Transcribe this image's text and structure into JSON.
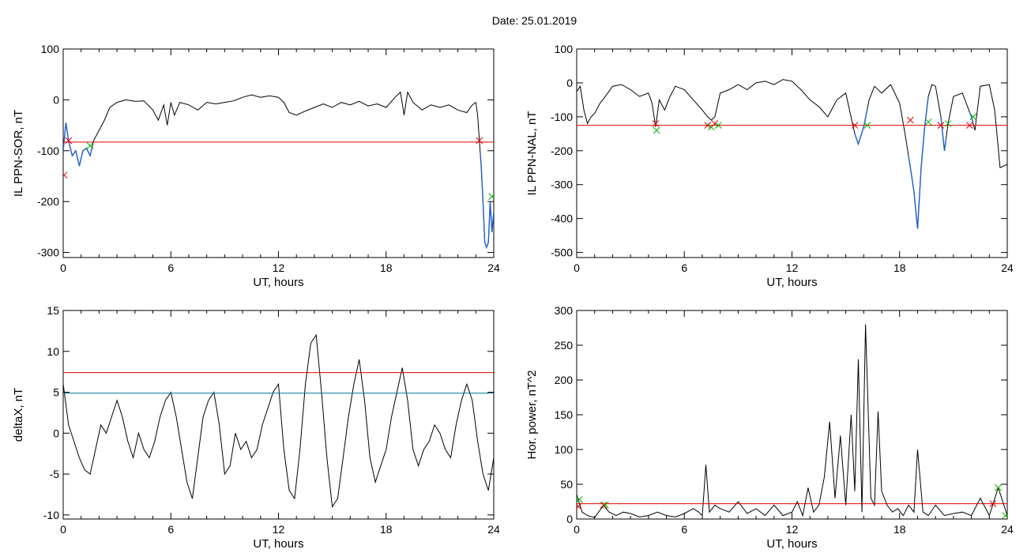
{
  "header": {
    "date_label": "Date:  25.01.2019"
  },
  "colors": {
    "data": "#000000",
    "threshold_red": "#e00000",
    "threshold_blue": "#007f9f",
    "segment_blue": "#1f5fd0",
    "marker_red": "#e00000",
    "marker_green": "#00b000"
  },
  "chart_data": [
    {
      "type": "line",
      "ylabel": "IL PPN-SOR, nT",
      "xlabel": "UT, hours",
      "xlim": [
        0,
        24
      ],
      "ylim": [
        -310,
        100
      ],
      "xticks": [
        0,
        6,
        12,
        18,
        24
      ],
      "yticks": [
        100,
        0,
        -100,
        -200,
        -300
      ],
      "series": [
        {
          "x": [
            0,
            0.15,
            0.3,
            0.5,
            0.7,
            0.9,
            1.1,
            1.3,
            1.5,
            1.7,
            2.0,
            2.3,
            2.6,
            3.0,
            3.5,
            4.0,
            4.5,
            5.0,
            5.3,
            5.6,
            5.8,
            6.0,
            6.2,
            6.5,
            7.0,
            7.5,
            8.0,
            8.5,
            9.0,
            9.5,
            10.0,
            10.5,
            11.0,
            11.5,
            12.0,
            12.3,
            12.6,
            13.0,
            13.5,
            14.0,
            14.5,
            15.0,
            15.5,
            16.0,
            16.5,
            17.0,
            17.5,
            18.0,
            18.5,
            18.8,
            19.0,
            19.2,
            19.5,
            20.0,
            20.5,
            21.0,
            21.5,
            22.0,
            22.5,
            22.8,
            23.0,
            23.1,
            23.2,
            23.3,
            23.4,
            23.5,
            23.6,
            23.7,
            23.8,
            23.9,
            24.0
          ],
          "y": [
            -100,
            -45,
            -80,
            -110,
            -100,
            -130,
            -100,
            -95,
            -110,
            -80,
            -60,
            -40,
            -15,
            -5,
            0,
            -3,
            -2,
            -20,
            -40,
            -10,
            -50,
            -5,
            -30,
            -5,
            -10,
            -20,
            -5,
            -8,
            -5,
            -2,
            5,
            10,
            5,
            8,
            5,
            -5,
            -25,
            -30,
            -22,
            -15,
            -8,
            -15,
            -5,
            -10,
            -3,
            -12,
            -8,
            -15,
            5,
            15,
            -30,
            15,
            -5,
            -20,
            -10,
            -15,
            -10,
            -20,
            -25,
            -10,
            -5,
            -30,
            -80,
            -130,
            -200,
            -280,
            -290,
            -280,
            -200,
            -260,
            -220
          ]
        }
      ],
      "threshold_lines": [
        {
          "y": -83,
          "color": "red"
        }
      ],
      "segments": [
        {
          "x0": 0,
          "x1": 1.6,
          "color": "blue"
        },
        {
          "x0": 23.25,
          "x1": 24,
          "color": "blue"
        }
      ],
      "markers": [
        {
          "x": 0.05,
          "y": -148,
          "color": "red"
        },
        {
          "x": 0.3,
          "y": -80,
          "color": "red"
        },
        {
          "x": 1.5,
          "y": -90,
          "color": "green"
        },
        {
          "x": 23.2,
          "y": -80,
          "color": "red"
        },
        {
          "x": 23.9,
          "y": -190,
          "color": "green"
        }
      ]
    },
    {
      "type": "line",
      "ylabel": "IL PPN-NAL, nT",
      "xlabel": "UT, hours",
      "xlim": [
        0,
        24
      ],
      "ylim": [
        -515,
        100
      ],
      "xticks": [
        0,
        6,
        12,
        18,
        24
      ],
      "yticks": [
        100,
        0,
        -100,
        -200,
        -300,
        -400,
        -500
      ],
      "series": [
        {
          "x": [
            0,
            0.2,
            0.4,
            0.6,
            0.8,
            1.0,
            1.3,
            1.6,
            2.0,
            2.5,
            3.0,
            3.5,
            4.0,
            4.2,
            4.4,
            4.6,
            4.9,
            5.2,
            5.5,
            6.0,
            6.5,
            7.0,
            7.3,
            7.5,
            7.7,
            8.0,
            8.5,
            9.0,
            9.5,
            10.0,
            10.5,
            11.0,
            11.5,
            12.0,
            12.5,
            13.0,
            13.5,
            14.0,
            14.5,
            15.0,
            15.5,
            15.7,
            16.0,
            16.3,
            16.6,
            17.0,
            17.5,
            18.0,
            18.3,
            18.6,
            18.8,
            19.0,
            19.2,
            19.4,
            19.6,
            19.8,
            20.0,
            20.3,
            20.5,
            20.7,
            21.0,
            21.5,
            22.0,
            22.2,
            22.5,
            23.0,
            23.3,
            23.6,
            24.0
          ],
          "y": [
            -25,
            -10,
            -80,
            -120,
            -100,
            -90,
            -60,
            -40,
            -10,
            -5,
            -20,
            -40,
            -30,
            -60,
            -130,
            -50,
            -80,
            -40,
            -10,
            -20,
            -50,
            -80,
            -100,
            -110,
            -100,
            -30,
            -20,
            -5,
            -20,
            0,
            5,
            -5,
            10,
            5,
            -20,
            -50,
            -70,
            -100,
            -50,
            -30,
            -150,
            -180,
            -130,
            -50,
            -10,
            -30,
            -5,
            -60,
            -150,
            -250,
            -320,
            -430,
            -250,
            -130,
            -40,
            -5,
            -10,
            -100,
            -200,
            -120,
            -40,
            -30,
            -100,
            -140,
            -10,
            -5,
            -80,
            -250,
            -240
          ]
        }
      ],
      "threshold_lines": [
        {
          "y": -125,
          "color": "red"
        }
      ],
      "segments": [
        {
          "x0": 15.5,
          "x1": 16.2,
          "color": "blue"
        },
        {
          "x0": 18.5,
          "x1": 19.6,
          "color": "blue"
        },
        {
          "x0": 20.3,
          "x1": 20.6,
          "color": "blue"
        },
        {
          "x0": 21.9,
          "x1": 22.1,
          "color": "blue"
        }
      ],
      "markers": [
        {
          "x": 4.4,
          "y": -120,
          "color": "red"
        },
        {
          "x": 4.45,
          "y": -140,
          "color": "green"
        },
        {
          "x": 7.3,
          "y": -125,
          "color": "red"
        },
        {
          "x": 7.5,
          "y": -130,
          "color": "green"
        },
        {
          "x": 7.7,
          "y": -120,
          "color": "red"
        },
        {
          "x": 7.9,
          "y": -125,
          "color": "green"
        },
        {
          "x": 15.5,
          "y": -125,
          "color": "red"
        },
        {
          "x": 16.2,
          "y": -125,
          "color": "green"
        },
        {
          "x": 18.6,
          "y": -110,
          "color": "red"
        },
        {
          "x": 19.6,
          "y": -115,
          "color": "green"
        },
        {
          "x": 20.3,
          "y": -125,
          "color": "red"
        },
        {
          "x": 20.7,
          "y": -120,
          "color": "green"
        },
        {
          "x": 21.9,
          "y": -125,
          "color": "red"
        },
        {
          "x": 22.1,
          "y": -100,
          "color": "green"
        }
      ]
    },
    {
      "type": "line",
      "ylabel": "deltaX, nT",
      "xlabel": "UT, hours",
      "xlim": [
        0,
        24
      ],
      "ylim": [
        -10.5,
        15
      ],
      "xticks": [
        0,
        6,
        12,
        18,
        24
      ],
      "yticks": [
        15,
        10,
        5,
        0,
        -5,
        -10
      ],
      "series": [
        {
          "x": [
            0,
            0.3,
            0.6,
            0.9,
            1.2,
            1.5,
            1.8,
            2.1,
            2.4,
            2.7,
            3.0,
            3.3,
            3.6,
            3.9,
            4.2,
            4.5,
            4.8,
            5.1,
            5.4,
            5.7,
            6.0,
            6.3,
            6.6,
            6.9,
            7.2,
            7.5,
            7.8,
            8.1,
            8.4,
            8.7,
            9.0,
            9.3,
            9.6,
            9.9,
            10.2,
            10.5,
            10.8,
            11.1,
            11.4,
            11.7,
            12.0,
            12.3,
            12.6,
            12.9,
            13.2,
            13.5,
            13.8,
            14.1,
            14.4,
            14.7,
            15.0,
            15.3,
            15.6,
            15.9,
            16.2,
            16.5,
            16.8,
            17.1,
            17.4,
            17.7,
            18.0,
            18.3,
            18.6,
            18.9,
            19.2,
            19.5,
            19.8,
            20.1,
            20.4,
            20.7,
            21.0,
            21.3,
            21.6,
            21.9,
            22.2,
            22.5,
            22.8,
            23.1,
            23.4,
            23.7,
            24.0
          ],
          "y": [
            6,
            1,
            -1,
            -3,
            -4.5,
            -5,
            -2,
            1,
            0,
            2,
            4,
            2,
            -1,
            -3,
            0,
            -2,
            -3,
            -1,
            2,
            4,
            5,
            2,
            -2,
            -6,
            -8,
            -3,
            2,
            4,
            5,
            1,
            -5,
            -4,
            0,
            -2,
            -1,
            -3,
            -2,
            1,
            3,
            5,
            6,
            -2,
            -7,
            -8,
            -2,
            6,
            11,
            12,
            5,
            -3,
            -9,
            -8,
            -3,
            2,
            6,
            9,
            4,
            -3,
            -6,
            -4,
            -2,
            2,
            5,
            8,
            4,
            -2,
            -4,
            -2,
            -1,
            1,
            0,
            -2,
            -3,
            1,
            4,
            6,
            4,
            -1,
            -5,
            -7,
            -3
          ]
        }
      ],
      "threshold_lines": [
        {
          "y": 7.4,
          "color": "red"
        },
        {
          "y": 4.9,
          "color": "blue"
        }
      ],
      "segments": [],
      "markers": []
    },
    {
      "type": "line",
      "ylabel": "Hor. power, nT^2",
      "xlabel": "UT, hours",
      "xlim": [
        0,
        24
      ],
      "ylim": [
        0,
        300
      ],
      "xticks": [
        0,
        6,
        12,
        18,
        24
      ],
      "yticks": [
        300,
        250,
        200,
        150,
        100,
        50,
        0
      ],
      "series": [
        {
          "x": [
            0,
            0.3,
            0.6,
            1.0,
            1.5,
            1.8,
            2.2,
            2.6,
            3.0,
            3.5,
            4.0,
            4.5,
            5.0,
            5.5,
            6.0,
            6.5,
            6.8,
            7.0,
            7.2,
            7.4,
            7.7,
            8.0,
            8.5,
            9.0,
            9.5,
            10.0,
            10.5,
            11.0,
            11.5,
            12.0,
            12.3,
            12.6,
            12.9,
            13.2,
            13.5,
            13.8,
            14.1,
            14.4,
            14.7,
            15.0,
            15.3,
            15.5,
            15.7,
            15.9,
            16.1,
            16.4,
            16.6,
            16.8,
            17.0,
            17.3,
            17.6,
            17.9,
            18.2,
            18.5,
            18.8,
            19.0,
            19.3,
            19.6,
            20.0,
            20.5,
            21.0,
            21.5,
            22.0,
            22.5,
            23.0,
            23.5,
            24.0
          ],
          "y": [
            35,
            10,
            5,
            2,
            20,
            10,
            5,
            10,
            8,
            3,
            5,
            10,
            5,
            3,
            8,
            15,
            10,
            5,
            78,
            10,
            20,
            15,
            10,
            25,
            8,
            15,
            5,
            20,
            5,
            10,
            25,
            5,
            45,
            10,
            20,
            60,
            140,
            30,
            120,
            20,
            150,
            40,
            230,
            10,
            280,
            30,
            20,
            155,
            40,
            20,
            10,
            15,
            5,
            20,
            10,
            100,
            10,
            5,
            20,
            5,
            8,
            10,
            5,
            30,
            5,
            45,
            5
          ]
        }
      ],
      "threshold_lines": [
        {
          "y": 22,
          "color": "red"
        }
      ],
      "segments": [],
      "markers": [
        {
          "x": 0.1,
          "y": 18,
          "color": "red"
        },
        {
          "x": 0.15,
          "y": 28,
          "color": "green"
        },
        {
          "x": 1.5,
          "y": 20,
          "color": "red"
        },
        {
          "x": 1.6,
          "y": 20,
          "color": "green"
        },
        {
          "x": 23.2,
          "y": 22,
          "color": "red"
        },
        {
          "x": 23.5,
          "y": 45,
          "color": "green"
        },
        {
          "x": 23.9,
          "y": 5,
          "color": "green"
        }
      ]
    }
  ]
}
